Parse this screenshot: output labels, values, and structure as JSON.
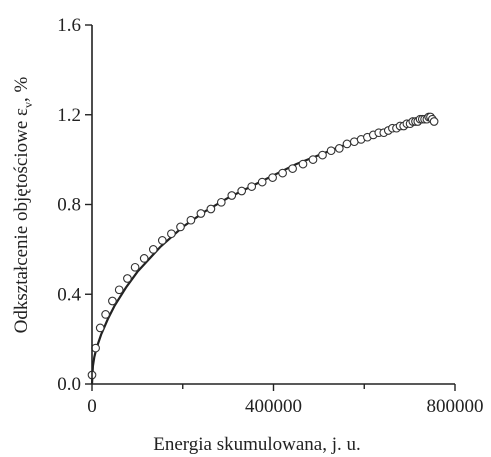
{
  "chart_data": {
    "type": "scatter",
    "title": "",
    "xlabel": "Energia skumulowana, j. u.",
    "ylabel": "Odkształcenie objętościowe ε",
    "ylabel_subscript": "v",
    "ylabel_suffix": ", %",
    "xlim": [
      0,
      800000
    ],
    "ylim": [
      0,
      1.6
    ],
    "x_ticks": [
      0,
      400000,
      800000
    ],
    "x_tick_labels": [
      "0",
      "400000",
      "800000"
    ],
    "y_ticks": [
      0.0,
      0.4,
      0.8,
      1.2,
      1.6
    ],
    "y_tick_labels": [
      "0.0",
      "0.4",
      "0.8",
      "1.2",
      "1.6"
    ],
    "grid": false,
    "series": [
      {
        "marker": "open-circle",
        "x": [
          0,
          8000,
          18000,
          30000,
          45000,
          60000,
          78000,
          95000,
          115000,
          135000,
          155000,
          175000,
          195000,
          218000,
          240000,
          262000,
          285000,
          308000,
          330000,
          352000,
          375000,
          398000,
          420000,
          442000,
          465000,
          487000,
          508000,
          527000,
          545000,
          562000,
          578000,
          593000,
          607000,
          620000,
          632000,
          643000,
          653000,
          662000,
          671000,
          679000,
          687000,
          694000,
          701000,
          707000,
          713000,
          718000,
          723000,
          728000,
          733000,
          738000,
          742000,
          746000,
          750000,
          754000
        ],
        "y": [
          0.04,
          0.16,
          0.25,
          0.31,
          0.37,
          0.42,
          0.47,
          0.52,
          0.56,
          0.6,
          0.64,
          0.67,
          0.7,
          0.73,
          0.76,
          0.78,
          0.81,
          0.84,
          0.86,
          0.88,
          0.9,
          0.92,
          0.94,
          0.96,
          0.98,
          1.0,
          1.02,
          1.04,
          1.05,
          1.07,
          1.08,
          1.09,
          1.1,
          1.11,
          1.12,
          1.12,
          1.13,
          1.14,
          1.14,
          1.15,
          1.15,
          1.16,
          1.16,
          1.17,
          1.17,
          1.17,
          1.18,
          1.18,
          1.18,
          1.18,
          1.19,
          1.19,
          1.18,
          1.17
        ]
      }
    ],
    "fit_curve": {
      "style": "solid",
      "x": [
        0,
        2000,
        5000,
        10000,
        20000,
        35000,
        50000,
        75000,
        100000,
        150000,
        200000,
        250000,
        300000,
        350000,
        400000,
        450000,
        500000,
        550000,
        600000,
        650000,
        700000,
        750000
      ],
      "y": [
        0.0,
        0.08,
        0.12,
        0.16,
        0.22,
        0.29,
        0.35,
        0.43,
        0.5,
        0.61,
        0.7,
        0.77,
        0.83,
        0.88,
        0.93,
        0.98,
        1.02,
        1.06,
        1.09,
        1.12,
        1.15,
        1.18
      ]
    }
  }
}
